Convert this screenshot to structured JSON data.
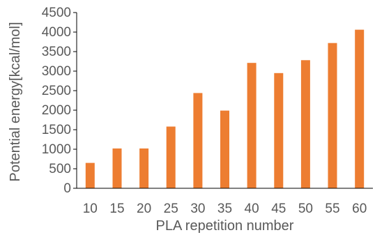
{
  "chart_data": {
    "type": "bar",
    "xlabel": "PLA repetition number",
    "ylabel": "Potential energy[kcal/mol]",
    "categories": [
      "10",
      "15",
      "20",
      "25",
      "30",
      "35",
      "40",
      "45",
      "50",
      "55",
      "60"
    ],
    "values": [
      650,
      1020,
      1020,
      1580,
      2440,
      1990,
      3210,
      2950,
      3280,
      3720,
      4060
    ],
    "ylim": [
      0,
      4500
    ],
    "yticks": [
      0,
      500,
      1000,
      1500,
      2000,
      2500,
      3000,
      3500,
      4000,
      4500
    ],
    "grid": false,
    "legend": "none",
    "bar_color": "#ED7D31",
    "axis_color": "#000000",
    "text_color": "#595959"
  }
}
